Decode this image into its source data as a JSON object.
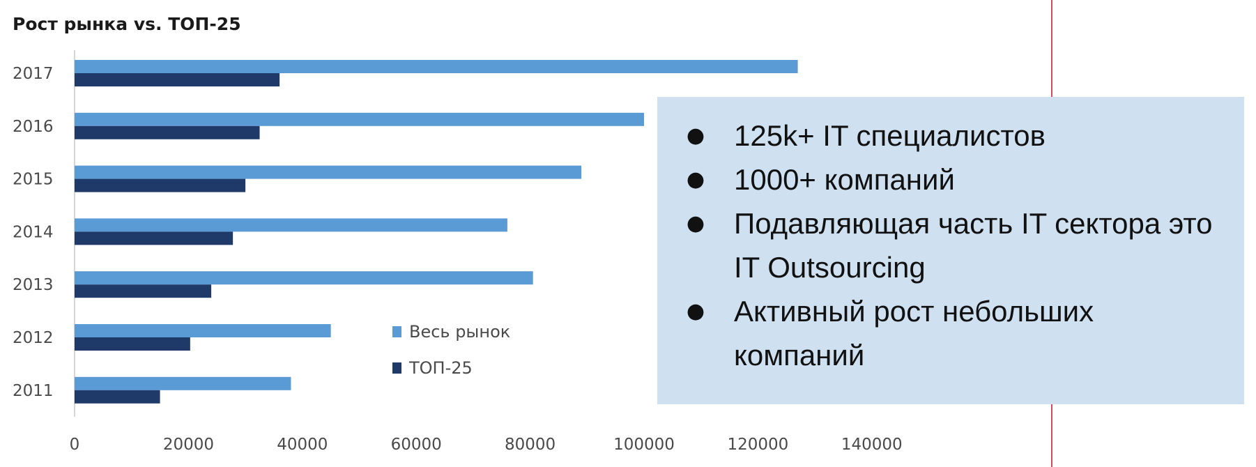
{
  "chart_data": {
    "type": "bar",
    "orientation": "horizontal",
    "title": "Рост рынка vs. ТОП-25",
    "categories": [
      "2017",
      "2016",
      "2015",
      "2014",
      "2013",
      "2012",
      "2011"
    ],
    "series": [
      {
        "name": "Весь рынок",
        "color": "#5b9bd5",
        "values": [
          127000,
          100000,
          89000,
          76000,
          80500,
          45000,
          38000
        ]
      },
      {
        "name": "ТОП-25",
        "color": "#1f3a68",
        "values": [
          36000,
          32500,
          30000,
          27800,
          24000,
          20300,
          15000
        ]
      }
    ],
    "xlim": [
      0,
      140000
    ],
    "xticks": [
      "0",
      "20000",
      "40000",
      "60000",
      "80000",
      "100000",
      "120000",
      "140000"
    ],
    "grid": false,
    "legend_position": "inside-bottom-center"
  },
  "info_panel": {
    "bullet_symbol": "●",
    "items": [
      "125k+ IT специалистов",
      "1000+ компаний",
      "Подавляющая часть IT сектора это IT Outsourcing",
      "Активный рост небольших компаний"
    ]
  }
}
